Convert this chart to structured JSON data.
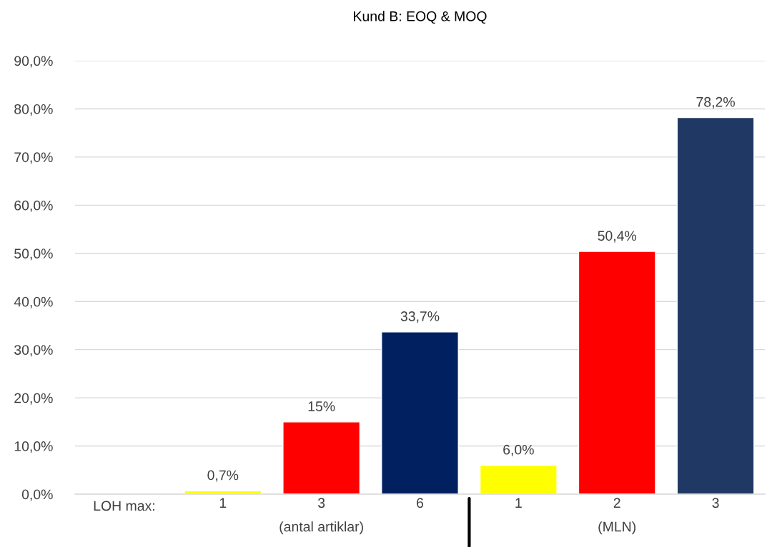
{
  "chart_data": {
    "type": "bar",
    "title": "Kund B: EOQ & MOQ",
    "xlabel": "LOH max:",
    "categories": [
      null,
      "1",
      "3",
      "6",
      "1",
      "2",
      "3"
    ],
    "values": [
      null,
      0.7,
      15,
      33.7,
      6.0,
      50.4,
      78.2
    ],
    "colors": [
      "#ffff00",
      "#ffff00",
      "#ff0000",
      "#002060",
      "#ffff00",
      "#ff0000",
      "#203864"
    ],
    "value_labels": [
      null,
      "0,7%",
      "15%",
      "33,7%",
      "6,0%",
      "50,4%",
      "78,2%"
    ],
    "annotations": [
      "(antal artiklar)",
      "(MLN)"
    ],
    "ylim": [
      0,
      90
    ],
    "yticks": [
      {
        "value": 0,
        "label": "0,0%"
      },
      {
        "value": 10,
        "label": "10,0%"
      },
      {
        "value": 20,
        "label": "20,0%"
      },
      {
        "value": 30,
        "label": "30,0%"
      },
      {
        "value": 40,
        "label": "40,0%"
      },
      {
        "value": 50,
        "label": "50,0%"
      },
      {
        "value": 60,
        "label": "60,0%"
      },
      {
        "value": 70,
        "label": "70,0%"
      },
      {
        "value": 80,
        "label": "80,0%"
      },
      {
        "value": 90,
        "label": "90,0%"
      }
    ],
    "grid": "y",
    "legend": false
  }
}
